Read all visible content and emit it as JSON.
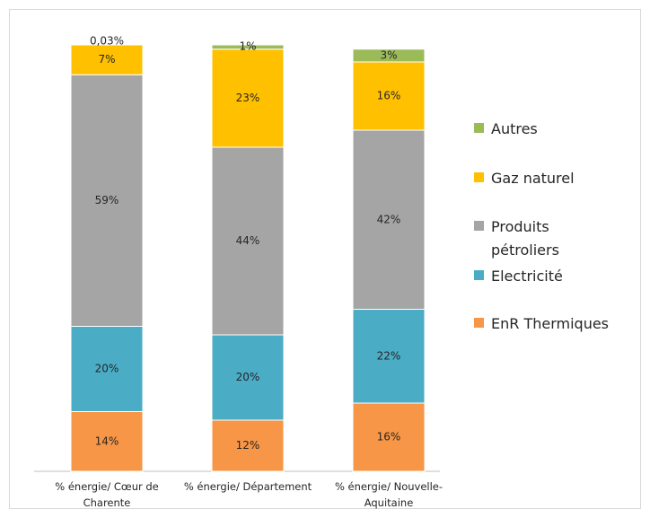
{
  "chart_data": {
    "type": "stacked-bar",
    "categories": [
      "% énergie/ Cœur de Charente",
      "% énergie/ Département",
      "% énergie/ Nouvelle-Aquitaine"
    ],
    "series": [
      {
        "name": "EnR Thermiques",
        "color": "#f79646",
        "values": [
          14,
          12,
          16
        ],
        "value_labels": [
          "14%",
          "12%",
          "16%"
        ]
      },
      {
        "name": "Electricité",
        "color": "#4bacc6",
        "values": [
          20,
          20,
          22
        ],
        "value_labels": [
          "20%",
          "20%",
          "22%"
        ]
      },
      {
        "name": "Produits pétroliers",
        "color": "#a5a5a5",
        "values": [
          59,
          44,
          42
        ],
        "value_labels": [
          "59%",
          "44%",
          "42%"
        ]
      },
      {
        "name": "Gaz naturel",
        "color": "#ffc000",
        "values": [
          7,
          23,
          16
        ],
        "value_labels": [
          "7%",
          "23%",
          "16%"
        ]
      },
      {
        "name": "Autres",
        "color": "#9bbb59",
        "values": [
          0.03,
          1,
          3
        ],
        "value_labels": [
          "0,03%",
          "1%",
          "3%"
        ]
      }
    ],
    "legend": "right"
  }
}
